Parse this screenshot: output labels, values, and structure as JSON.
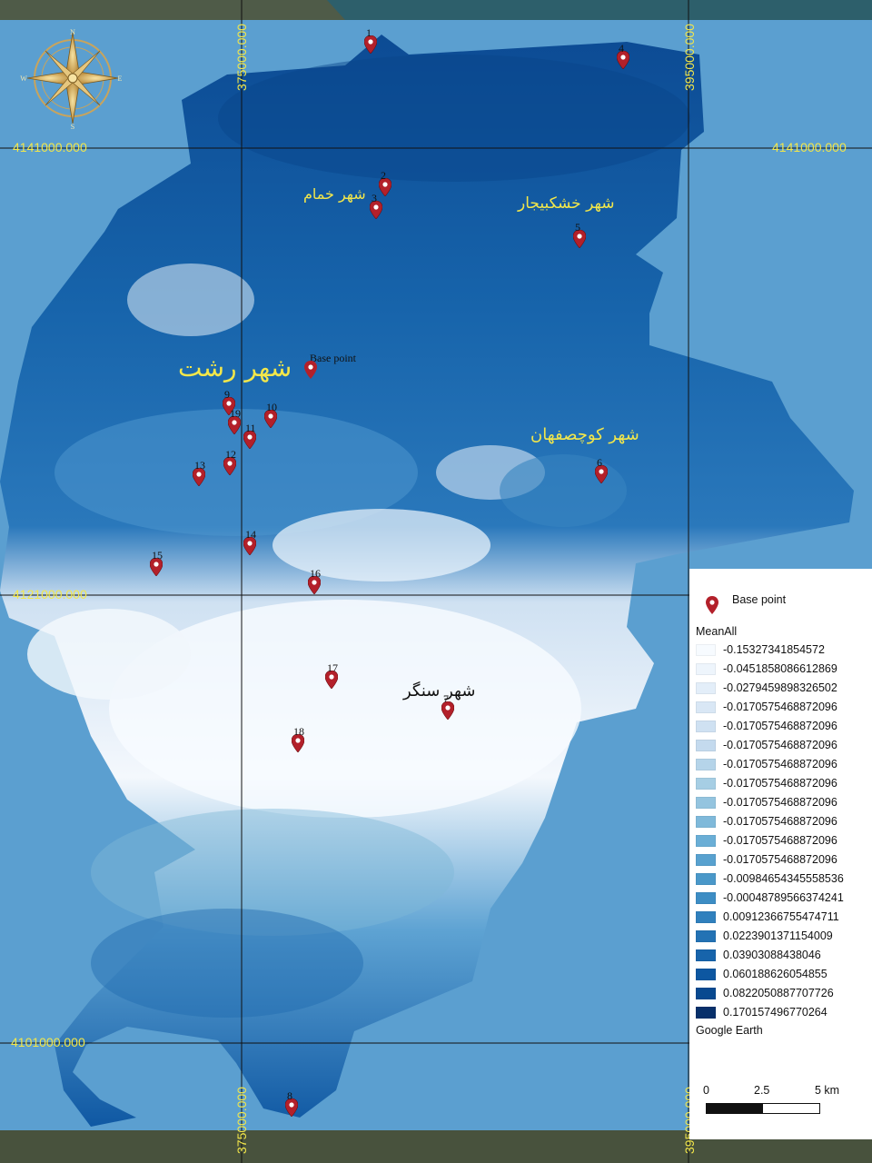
{
  "map": {
    "grid_labels": {
      "y_4141": "4141000.000",
      "y_4121": "4121000.000",
      "y_4101": "4101000.000",
      "x_375": "375000.000",
      "x_395": "395000.000"
    },
    "cities": {
      "khomam": "شهر خمام",
      "khoshkbijar": "شهر خشکبیجار",
      "rasht": "شهر رشت",
      "kuchesfahan": "شهر کوچصفهان",
      "sangar": "شهر سنگر"
    },
    "base_point_label": "Base point",
    "points": [
      "1",
      "2",
      "3",
      "4",
      "5",
      "6",
      "7",
      "8",
      "9",
      "10",
      "11",
      "12",
      "13",
      "14",
      "15",
      "16",
      "17",
      "18",
      "19"
    ],
    "compass_letters": [
      "N",
      "E",
      "S",
      "W"
    ]
  },
  "legend": {
    "base_point": "Base point",
    "title": "MeanAll",
    "classes": [
      {
        "label": "-0.15327341854572",
        "color": "#f7fbff"
      },
      {
        "label": "-0.0451858086612869",
        "color": "#eef5fc"
      },
      {
        "label": "-0.0279459898326502",
        "color": "#e3eef9"
      },
      {
        "label": "-0.0170575468872096",
        "color": "#d9e7f5"
      },
      {
        "label": "-0.0170575468872096",
        "color": "#cfe1f2"
      },
      {
        "label": "-0.0170575468872096",
        "color": "#c4daee"
      },
      {
        "label": "-0.0170575468872096",
        "color": "#b5d4e9"
      },
      {
        "label": "-0.0170575468872096",
        "color": "#a6cee4"
      },
      {
        "label": "-0.0170575468872096",
        "color": "#94c4df"
      },
      {
        "label": "-0.0170575468872096",
        "color": "#7fb9da"
      },
      {
        "label": "-0.0170575468872096",
        "color": "#6aaed6"
      },
      {
        "label": "-0.0170575468872096",
        "color": "#58a1cf"
      },
      {
        "label": "-0.00984654345558536",
        "color": "#4a98c9"
      },
      {
        "label": "-0.00048789566374241",
        "color": "#3d8dc4"
      },
      {
        "label": "0.00912366755474711",
        "color": "#3080bd"
      },
      {
        "label": "0.0223901371154009",
        "color": "#2372b4"
      },
      {
        "label": "0.03903088438046",
        "color": "#1764ab"
      },
      {
        "label": "0.060188626054855",
        "color": "#0d57a1"
      },
      {
        "label": "0.0822050887707726",
        "color": "#084990"
      },
      {
        "label": "0.170157496770264",
        "color": "#08306b"
      }
    ],
    "source": "Google Earth",
    "scale": {
      "ticks": [
        "0",
        "2.5",
        "5 km"
      ]
    }
  }
}
